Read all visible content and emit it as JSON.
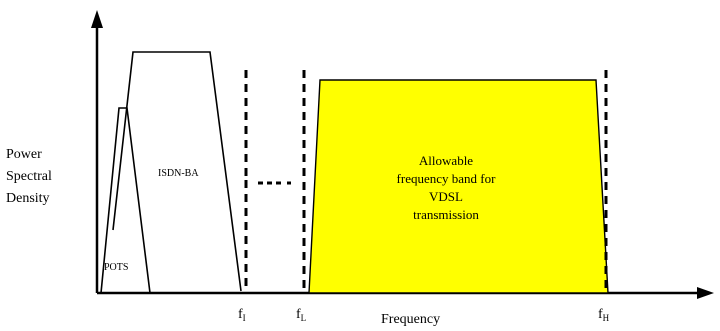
{
  "y_axis_label_lines": [
    "Power",
    "Spectral",
    "Density"
  ],
  "x_axis_label": "Frequency",
  "bands": {
    "pots": "POTS",
    "isdn": "ISDN-BA",
    "vdsl_lines": [
      "Allowable",
      "frequency band for",
      "VDSL",
      "transmission"
    ]
  },
  "freq_markers": {
    "f_i": {
      "base": "f",
      "sub": "I"
    },
    "f_l": {
      "base": "f",
      "sub": "L"
    },
    "f_h": {
      "base": "f",
      "sub": "H"
    }
  },
  "colors": {
    "vdsl_fill": "#FFFF00",
    "line": "#000000",
    "background": "#FFFFFF"
  }
}
